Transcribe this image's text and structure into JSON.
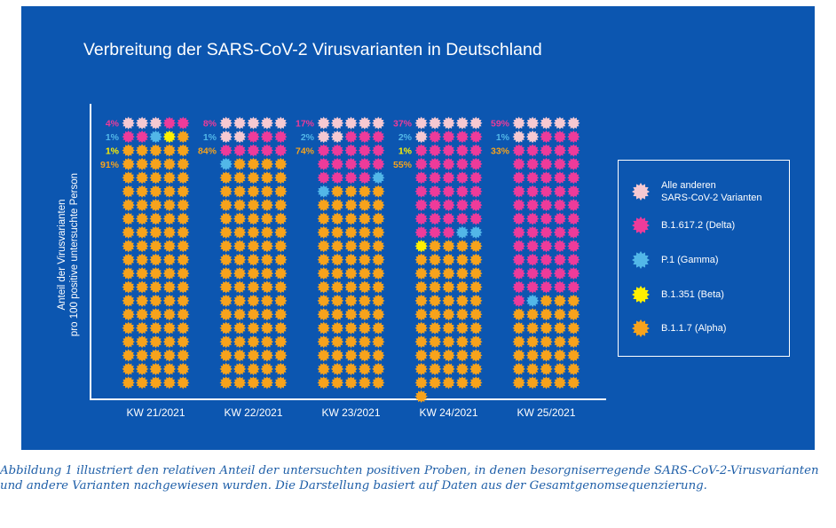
{
  "chart_data": {
    "type": "waffle",
    "title": "Verbreitung der SARS-CoV-2 Virusvarianten in Deutschland",
    "ylabel_line1": "Anteil der Virusvarianten",
    "ylabel_line2": "pro 100 positive untersuchte Person",
    "categories": [
      "KW 21/2021",
      "KW 22/2021",
      "KW 23/2021",
      "KW 24/2021",
      "KW 25/2021"
    ],
    "series": [
      {
        "key": "other",
        "name": "Alle anderen\nSARS-CoV-2 Varianten",
        "color": "#f6c9d2",
        "values": [
          3,
          7,
          7,
          6,
          7
        ]
      },
      {
        "key": "delta",
        "name": "B.1.617.2 (Delta)",
        "color": "#ee3b9a",
        "values": [
          4,
          8,
          17,
          37,
          59
        ]
      },
      {
        "key": "gamma",
        "name": "P.1 (Gamma)",
        "color": "#52b7e8",
        "values": [
          1,
          1,
          2,
          2,
          1
        ]
      },
      {
        "key": "beta",
        "name": "B.1.351 (Beta)",
        "color": "#fff000",
        "values": [
          1,
          0,
          0,
          1,
          0
        ]
      },
      {
        "key": "alpha",
        "name": "B.1.1.7 (Alpha)",
        "color": "#f7a31c",
        "values": [
          91,
          84,
          74,
          55,
          33
        ]
      }
    ],
    "percent_labels": [
      [
        {
          "text": "4%",
          "key": "delta"
        },
        {
          "text": "1%",
          "key": "gamma"
        },
        {
          "text": "1%",
          "key": "beta"
        },
        {
          "text": "91%",
          "key": "alpha"
        }
      ],
      [
        {
          "text": "8%",
          "key": "delta"
        },
        {
          "text": "1%",
          "key": "gamma"
        },
        {
          "text": "84%",
          "key": "alpha"
        }
      ],
      [
        {
          "text": "17%",
          "key": "delta"
        },
        {
          "text": "2%",
          "key": "gamma"
        },
        {
          "text": "74%",
          "key": "alpha"
        }
      ],
      [
        {
          "text": "37%",
          "key": "delta"
        },
        {
          "text": "2%",
          "key": "gamma"
        },
        {
          "text": "1%",
          "key": "beta"
        },
        {
          "text": "55%",
          "key": "alpha"
        }
      ],
      [
        {
          "text": "59%",
          "key": "delta"
        },
        {
          "text": "1%",
          "key": "gamma"
        },
        {
          "text": "33%",
          "key": "alpha"
        }
      ]
    ],
    "grid": false,
    "legend_position": "right"
  },
  "caption": "Abbildung 1 illustriert den relativen Anteil der untersuchten positiven Proben, in denen besorgniserregende SARS-CoV-2-Virusvarianten und andere Varianten nachgewiesen wurden. Die Darstellung basiert auf Daten aus der Gesamtgenomsequenzierung."
}
